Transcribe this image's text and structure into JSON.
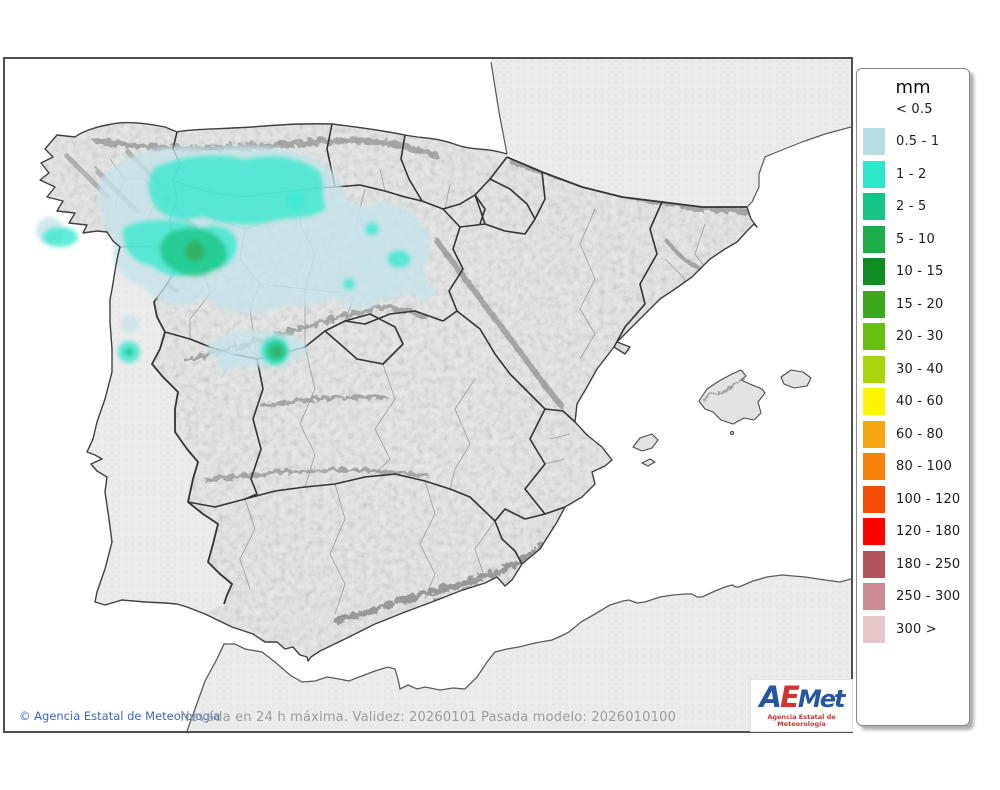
{
  "legend": {
    "title": "mm",
    "entries": [
      {
        "label": "< 0.5",
        "color": null
      },
      {
        "label": "0.5 - 1",
        "color": "#b8dce3"
      },
      {
        "label": "1 - 2",
        "color": "#2fe8cc"
      },
      {
        "label": "2 - 5",
        "color": "#16c586"
      },
      {
        "label": "5 - 10",
        "color": "#1cad49"
      },
      {
        "label": "10 - 15",
        "color": "#118c22"
      },
      {
        "label": "15 - 20",
        "color": "#3ba81e"
      },
      {
        "label": "20 - 30",
        "color": "#6ac00f"
      },
      {
        "label": "30 - 40",
        "color": "#a8d50c"
      },
      {
        "label": "40 - 60",
        "color": "#fdf403"
      },
      {
        "label": "60 - 80",
        "color": "#f6a713"
      },
      {
        "label": "80 - 100",
        "color": "#f5820b"
      },
      {
        "label": "100 - 120",
        "color": "#f44d05"
      },
      {
        "label": "120 - 180",
        "color": "#fb0400"
      },
      {
        "label": "180 - 250",
        "color": "#b3535b"
      },
      {
        "label": "250 - 300",
        "color": "#ca8b92"
      },
      {
        "label": "300 >",
        "color": "#e8c7ca"
      }
    ]
  },
  "map_footer": {
    "copyright": "© Agencia Estatal de Meteorología",
    "caption": "Nevada en 24 h máxima. Validez: 20260101 Pasada modelo: 2026010100"
  },
  "logo": {
    "text_a": "A",
    "text_e": "E",
    "text_met": "Met",
    "subtitle": "Agencia Estatal de Meteorología"
  },
  "map_colors": {
    "sea": "#ffffff",
    "land_foreign": "#ebebeb",
    "land_spain": "#e9e9e9",
    "coastline": "#3f3f3f",
    "border_region": "#333333",
    "border_province": "#9b9b9b",
    "snow_light": "#c6e3ea",
    "snow_cyan": "#3ce9cf",
    "snow_green": "#1fc98c",
    "snow_dark_green": "#35ad5e"
  }
}
